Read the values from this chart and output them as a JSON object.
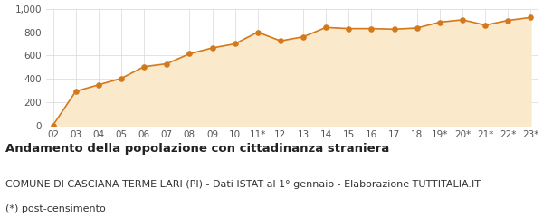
{
  "x_labels": [
    "02",
    "03",
    "04",
    "05",
    "06",
    "07",
    "08",
    "09",
    "10",
    "11*",
    "12",
    "13",
    "14",
    "15",
    "16",
    "17",
    "18",
    "19*",
    "20*",
    "21*",
    "22*",
    "23*"
  ],
  "y_values": [
    5,
    295,
    350,
    405,
    505,
    530,
    615,
    665,
    700,
    800,
    725,
    760,
    840,
    830,
    830,
    825,
    835,
    885,
    905,
    860,
    900,
    925
  ],
  "line_color": "#d4781a",
  "fill_color": "#faeacb",
  "marker_color": "#d4781a",
  "figure_bg": "#ffffff",
  "chart_bg": "#faeacb",
  "grid_color": "#d8d8d8",
  "title": "Andamento della popolazione con cittadinanza straniera",
  "subtitle": "COMUNE DI CASCIANA TERME LARI (PI) - Dati ISTAT al 1° gennaio - Elaborazione TUTTITALIA.IT",
  "footnote": "(*) post-censimento",
  "ylim": [
    0,
    1000
  ],
  "ytick_values": [
    0,
    200,
    400,
    600,
    800,
    1000
  ],
  "ytick_labels": [
    "0",
    "200",
    "400",
    "600",
    "800",
    "1,000"
  ],
  "title_fontsize": 9.5,
  "subtitle_fontsize": 8,
  "footnote_fontsize": 8,
  "tick_fontsize": 7.5
}
